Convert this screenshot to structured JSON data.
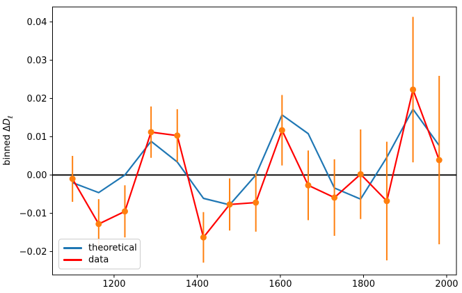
{
  "figure": {
    "background": "#ffffff",
    "frame_color": "#000000",
    "tick_text_color": "#000000"
  },
  "chart_data": {
    "type": "line",
    "title": "",
    "xlabel": "",
    "ylabel": {
      "text": "binned ΔDℓ",
      "prefix": "binned Δ",
      "italic_var": "D",
      "subscript": "ℓ"
    },
    "xlim": [
      1052,
      2023.5
    ],
    "ylim": [
      -0.0261,
      0.0439
    ],
    "grid": false,
    "zero_line": {
      "y": 0,
      "color": "#000000"
    },
    "x_ticks": [
      {
        "v": 1200,
        "label": "1200"
      },
      {
        "v": 1400,
        "label": "1400"
      },
      {
        "v": 1600,
        "label": "1600"
      },
      {
        "v": 1800,
        "label": "1800"
      },
      {
        "v": 2000,
        "label": "2000"
      }
    ],
    "y_ticks": [
      {
        "v": -0.02,
        "label": "−0.02"
      },
      {
        "v": -0.01,
        "label": "−0.01"
      },
      {
        "v": 0.0,
        "label": "0.00"
      },
      {
        "v": 0.01,
        "label": "0.01"
      },
      {
        "v": 0.02,
        "label": "0.02"
      },
      {
        "v": 0.03,
        "label": "0.03"
      },
      {
        "v": 0.04,
        "label": "0.04"
      }
    ],
    "x": [
      1100,
      1163,
      1226,
      1289,
      1352,
      1415,
      1478,
      1541,
      1604,
      1667,
      1730,
      1793,
      1856,
      1919,
      1982
    ],
    "series": [
      {
        "name": "theoretical",
        "color": "#1f77b4",
        "values": [
          -0.002,
          -0.0046,
          0.0,
          0.0088,
          0.0034,
          -0.0061,
          -0.0078,
          0.0,
          0.0157,
          0.0108,
          -0.0034,
          -0.0063,
          0.0046,
          0.0172,
          0.0077
        ]
      },
      {
        "name": "data",
        "color": "#ff0000",
        "marker_color": "#ff7f0e",
        "error_color": "#ff7f0e",
        "values": [
          -0.001,
          -0.0128,
          -0.0095,
          0.0112,
          0.0103,
          -0.0163,
          -0.0077,
          -0.0072,
          0.0117,
          -0.0027,
          -0.0059,
          0.0002,
          -0.0068,
          0.0223,
          0.0039
        ],
        "errors": [
          0.006,
          0.0065,
          0.0068,
          0.0067,
          0.0069,
          0.0066,
          0.0068,
          0.0076,
          0.0092,
          0.0091,
          0.01,
          0.0117,
          0.0155,
          0.019,
          0.022
        ]
      }
    ],
    "legend_position": "lower left"
  }
}
